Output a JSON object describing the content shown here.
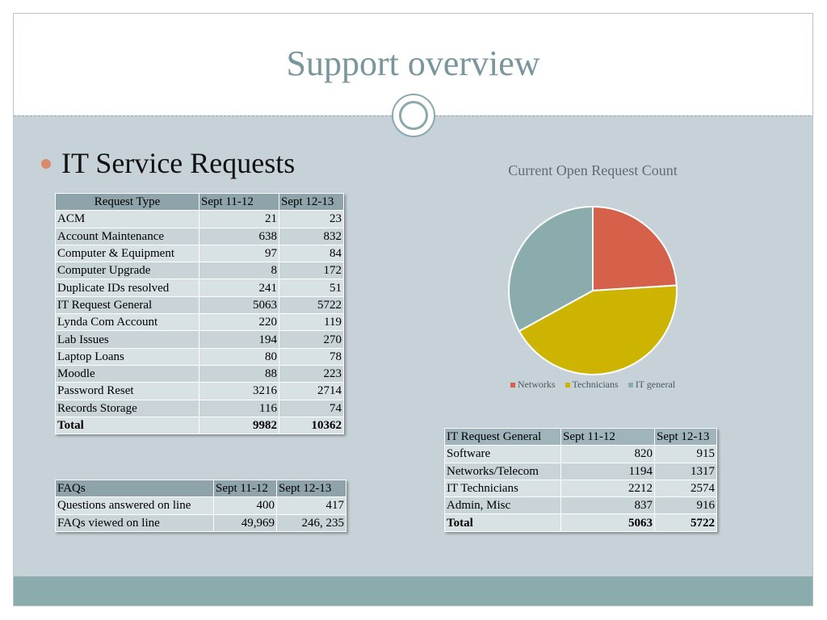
{
  "slide_title": "Support overview",
  "bullet": "IT Service Requests",
  "requests_table": {
    "headers": [
      "Request Type",
      "Sept 11-12",
      "Sept 12-13"
    ],
    "rows": [
      [
        "ACM",
        "21",
        "23"
      ],
      [
        "Account Maintenance",
        "638",
        "832"
      ],
      [
        "Computer & Equipment",
        "97",
        "84"
      ],
      [
        "Computer Upgrade",
        "8",
        "172"
      ],
      [
        "Duplicate IDs resolved",
        "241",
        "51"
      ],
      [
        "IT Request General",
        "5063",
        "5722"
      ],
      [
        "Lynda Com Account",
        "220",
        "119"
      ],
      [
        "Lab Issues",
        "194",
        "270"
      ],
      [
        "Laptop Loans",
        "80",
        "78"
      ],
      [
        "Moodle",
        "88",
        "223"
      ],
      [
        "Password Reset",
        "3216",
        "2714"
      ],
      [
        "Records Storage",
        "116",
        "74"
      ]
    ],
    "total": [
      "Total",
      "9982",
      "10362"
    ]
  },
  "faq_table": {
    "headers": [
      "FAQs",
      "Sept 11-12",
      "Sept 12-13"
    ],
    "rows": [
      [
        "Questions answered on line",
        "400",
        "417"
      ],
      [
        "FAQs viewed on line",
        "49,969",
        "246, 235"
      ]
    ]
  },
  "general_table": {
    "headers": [
      "IT Request General",
      "Sept 11-12",
      "Sept 12-13"
    ],
    "rows": [
      [
        "Software",
        "820",
        "915"
      ],
      [
        "Networks/Telecom",
        "1194",
        "1317"
      ],
      [
        "IT Technicians",
        "2212",
        "2574"
      ],
      [
        "Admin, Misc",
        "837",
        "916"
      ]
    ],
    "total": [
      "Total",
      "5063",
      "5722"
    ]
  },
  "chart_data": {
    "type": "pie",
    "title": "Current Open Request Count",
    "categories": [
      "Networks",
      "Technicians",
      "IT general"
    ],
    "values": [
      24,
      43,
      33
    ],
    "colors": [
      "#d5614a",
      "#cdb400",
      "#8aacad"
    ],
    "legend_position": "bottom"
  }
}
